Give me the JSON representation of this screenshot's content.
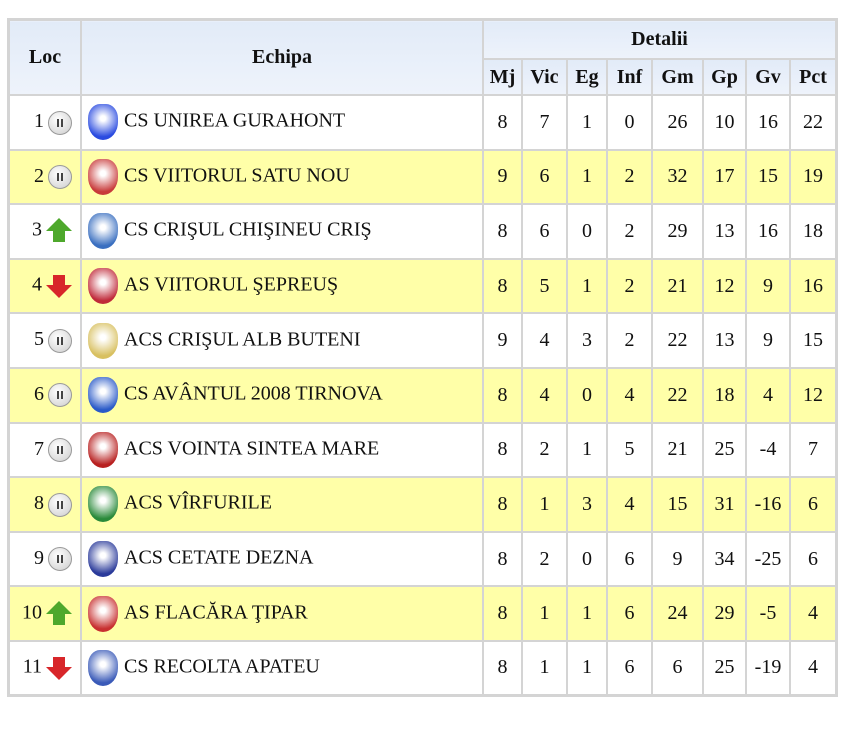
{
  "headers": {
    "loc": "Loc",
    "team": "Echipa",
    "details": "Detalii",
    "cols": [
      "Mj",
      "Vic",
      "Eg",
      "Inf",
      "Gm",
      "Gp",
      "Gv",
      "Pct"
    ]
  },
  "colors": {
    "highlight": "#ffffa8",
    "up": "#4ea82c",
    "down": "#d8262a"
  },
  "rows": [
    {
      "pos": "1",
      "trend": "same",
      "team": "CS UNIREA GURAHONT",
      "logo": "#2a4be0",
      "stats": [
        "8",
        "7",
        "1",
        "0",
        "26",
        "10",
        "16",
        "22"
      ]
    },
    {
      "pos": "2",
      "trend": "same",
      "team": "CS VIITORUL SATU NOU",
      "logo": "#c83a3a",
      "stats": [
        "9",
        "6",
        "1",
        "2",
        "32",
        "17",
        "15",
        "19"
      ]
    },
    {
      "pos": "3",
      "trend": "up",
      "team": "CS CRIŞUL CHIŞINEU CRIŞ",
      "logo": "#3a6fc0",
      "stats": [
        "8",
        "6",
        "0",
        "2",
        "29",
        "13",
        "16",
        "18"
      ]
    },
    {
      "pos": "4",
      "trend": "down",
      "team": "AS VIITORUL ŞEPREUŞ",
      "logo": "#c02a3a",
      "stats": [
        "8",
        "5",
        "1",
        "2",
        "21",
        "12",
        "9",
        "16"
      ]
    },
    {
      "pos": "5",
      "trend": "same",
      "team": "ACS CRIŞUL ALB BUTENI",
      "logo": "#d8c060",
      "stats": [
        "9",
        "4",
        "3",
        "2",
        "22",
        "13",
        "9",
        "15"
      ]
    },
    {
      "pos": "6",
      "trend": "same",
      "team": "CS AVÂNTUL 2008 TIRNOVA",
      "logo": "#2a5ac8",
      "stats": [
        "8",
        "4",
        "0",
        "4",
        "22",
        "18",
        "4",
        "12"
      ]
    },
    {
      "pos": "7",
      "trend": "same",
      "team": "ACS VOINTA SINTEA MARE",
      "logo": "#b82020",
      "stats": [
        "8",
        "2",
        "1",
        "5",
        "21",
        "25",
        "-4",
        "7"
      ]
    },
    {
      "pos": "8",
      "trend": "same",
      "team": "ACS VÎRFURILE",
      "logo": "#2a8a3a",
      "stats": [
        "8",
        "1",
        "3",
        "4",
        "15",
        "31",
        "-16",
        "6"
      ]
    },
    {
      "pos": "9",
      "trend": "same",
      "team": "ACS CETATE DEZNA",
      "logo": "#2a3a9a",
      "stats": [
        "8",
        "2",
        "0",
        "6",
        "9",
        "34",
        "-25",
        "6"
      ]
    },
    {
      "pos": "10",
      "trend": "up",
      "team": "AS FLACĂRA ŢIPAR",
      "logo": "#c83030",
      "stats": [
        "8",
        "1",
        "1",
        "6",
        "24",
        "29",
        "-5",
        "4"
      ]
    },
    {
      "pos": "11",
      "trend": "down",
      "team": "CS RECOLTA APATEU",
      "logo": "#3a5ab8",
      "stats": [
        "8",
        "1",
        "1",
        "6",
        "6",
        "25",
        "-19",
        "4"
      ]
    }
  ]
}
